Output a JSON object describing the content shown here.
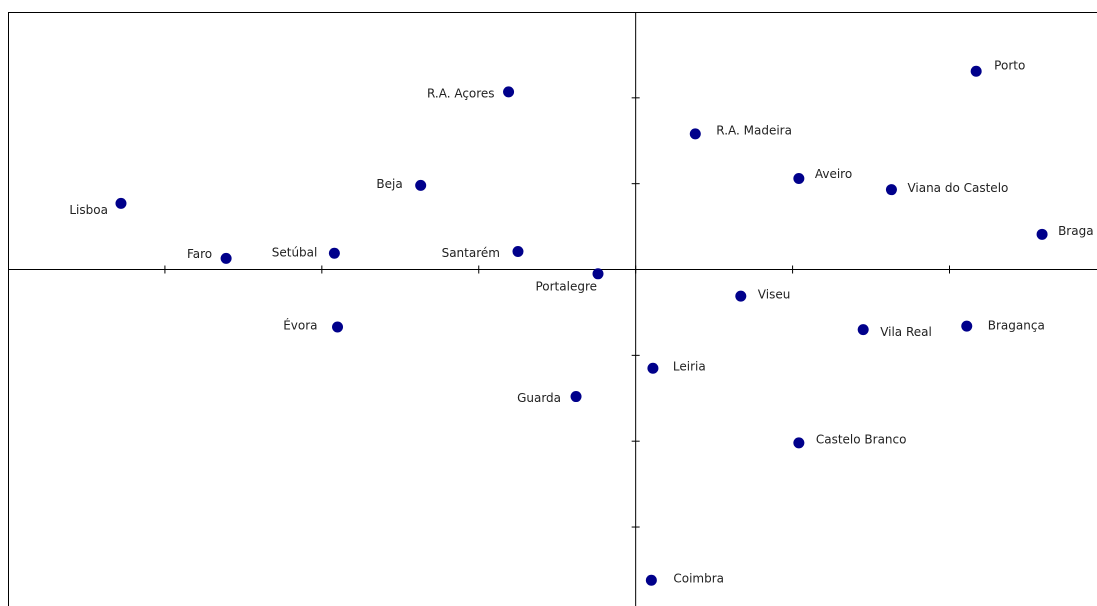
{
  "chart_data": {
    "type": "scatter",
    "labels": [
      "Lisboa",
      "Faro",
      "Setúbal",
      "Évora",
      "Beja",
      "R.A. Açores",
      "Santarém",
      "Portalegre",
      "Guarda",
      "R.A. Madeira",
      "Aveiro",
      "Viana do Castelo",
      "Porto",
      "Braga",
      "Viseu",
      "Vila Real",
      "Bragança",
      "Leiria",
      "Castelo Branco",
      "Coimbra"
    ],
    "x": [
      -3.28,
      -2.61,
      -1.92,
      -1.9,
      -1.37,
      -0.81,
      -0.75,
      -0.24,
      -0.38,
      0.38,
      1.04,
      1.63,
      2.17,
      2.59,
      0.67,
      1.45,
      2.11,
      0.11,
      1.04,
      0.1
    ],
    "values": [
      0.77,
      0.13,
      0.19,
      -0.67,
      0.98,
      2.07,
      0.21,
      -0.05,
      -1.48,
      1.58,
      1.06,
      0.93,
      2.31,
      0.41,
      -0.31,
      -0.7,
      -0.66,
      -1.15,
      -2.02,
      -3.62
    ],
    "color": "#00008b",
    "xlim": [
      -4,
      2.94
    ],
    "ylim": [
      -3.92,
      3
    ],
    "xticks": [
      -3,
      -2,
      -1,
      0,
      1,
      2
    ],
    "yticks": [
      -3,
      -2,
      -1,
      0,
      1,
      2
    ]
  }
}
